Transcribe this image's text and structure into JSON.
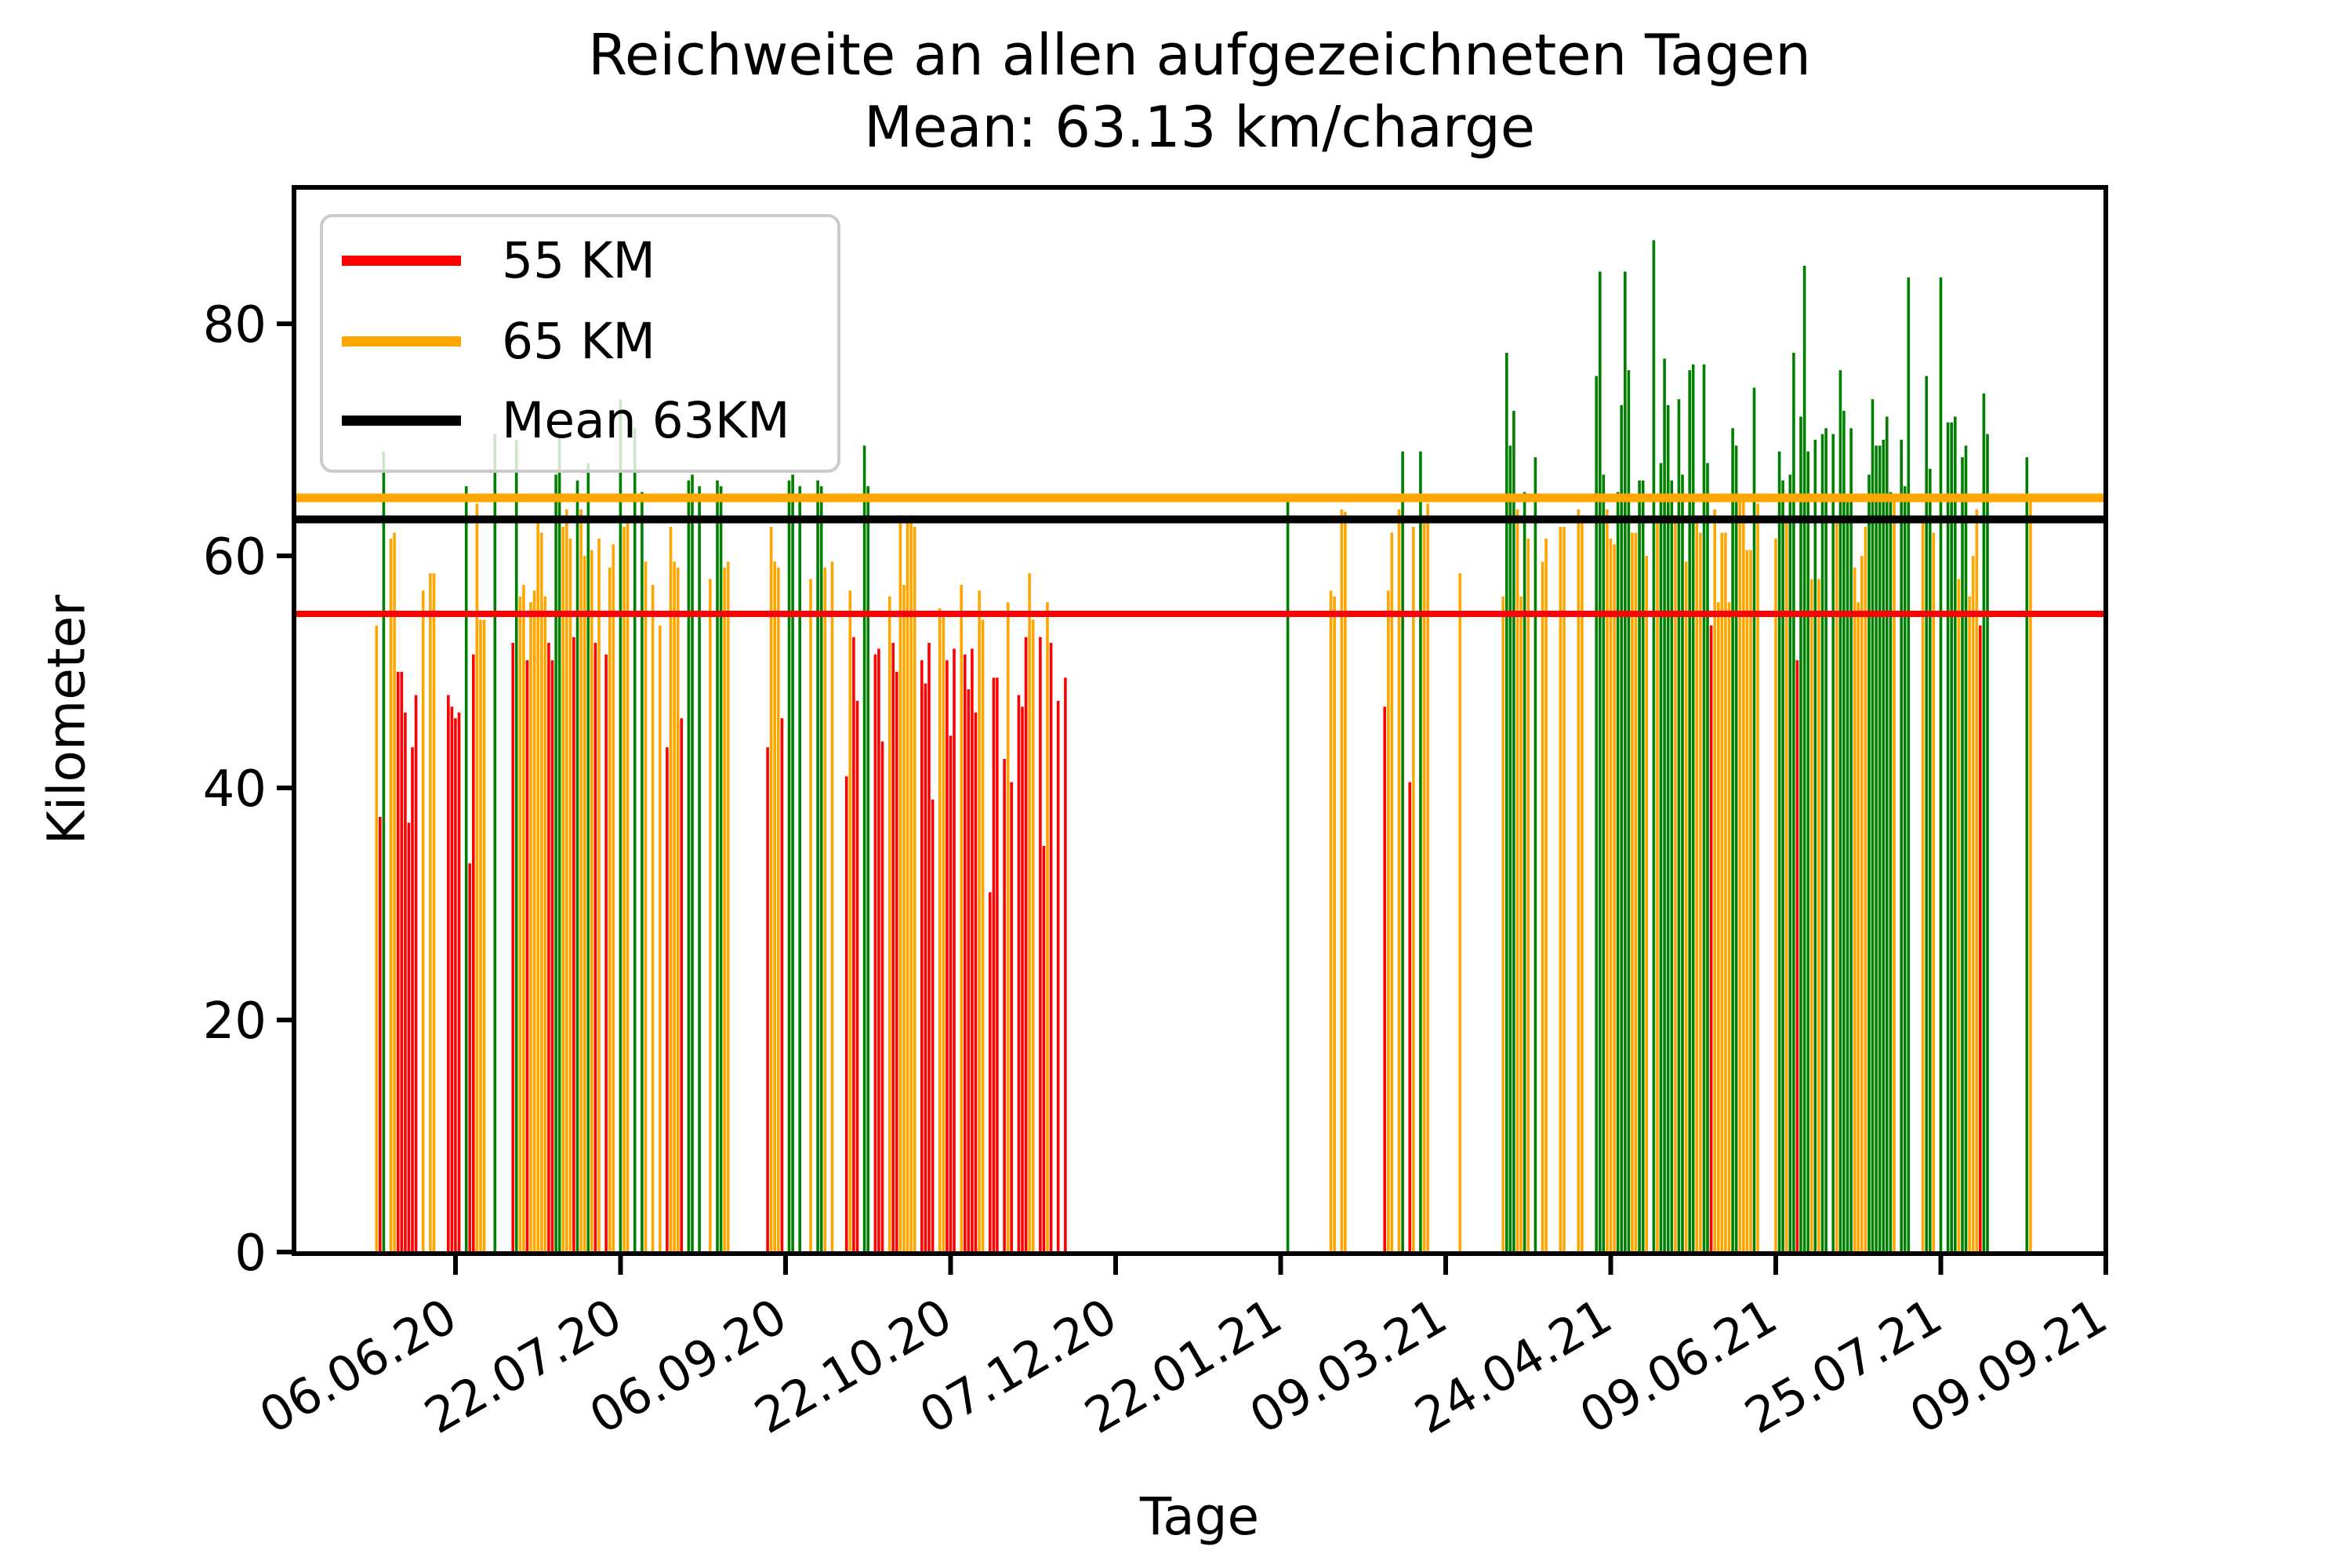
{
  "title": {
    "line1": "Reichweite an allen aufgezeichneten Tagen",
    "line2": "Mean: 63.13 km/charge"
  },
  "axes": {
    "x_label": "Tage",
    "y_label": "Kilometer",
    "y_ticks": [
      0,
      20,
      40,
      60,
      80
    ],
    "x_tick_labels": [
      "06.06.20",
      "22.07.20",
      "06.09.20",
      "22.10.20",
      "07.12.20",
      "22.01.21",
      "09.03.21",
      "24.04.21",
      "09.06.21",
      "25.07.21",
      "09.09.21"
    ],
    "x_tick_dates": [
      "2020-06-06",
      "2020-07-22",
      "2020-09-06",
      "2020-10-22",
      "2020-12-07",
      "2021-01-22",
      "2021-03-09",
      "2021-04-24",
      "2021-06-09",
      "2021-07-25",
      "2021-09-09"
    ]
  },
  "legend": {
    "entries": [
      {
        "label": "55 KM",
        "color": "#ff0000"
      },
      {
        "label": "65 KM",
        "color": "#ffa500"
      },
      {
        "label": "Mean 63KM",
        "color": "#000000"
      }
    ]
  },
  "chart_data": {
    "type": "bar",
    "title": "Reichweite an allen aufgezeichneten Tagen Mean: 63.13 km/charge",
    "xlabel": "Tage",
    "ylabel": "Kilometer",
    "ylim": [
      0,
      91.8
    ],
    "x_start": "2020-04-22",
    "x_end": "2021-09-09",
    "mean": 63.13,
    "reference_lines": [
      {
        "label": "55 KM",
        "value": 55,
        "color": "#ff0000"
      },
      {
        "label": "65 KM",
        "value": 65,
        "color": "#ffa500"
      },
      {
        "label": "Mean 63KM",
        "value": 63.13,
        "color": "#000000"
      }
    ],
    "color_map": {
      "r": "#ff0000",
      "o": "#ffa500",
      "g": "#008000"
    },
    "bars": [
      [
        "2020-05-15",
        54,
        "o"
      ],
      [
        "2020-05-16",
        37.5,
        "r"
      ],
      [
        "2020-05-17",
        69,
        "g"
      ],
      [
        "2020-05-19",
        61.5,
        "o"
      ],
      [
        "2020-05-20",
        62,
        "o"
      ],
      [
        "2020-05-21",
        50,
        "r"
      ],
      [
        "2020-05-22",
        50,
        "r"
      ],
      [
        "2020-05-23",
        46.5,
        "r"
      ],
      [
        "2020-05-24",
        37,
        "r"
      ],
      [
        "2020-05-25",
        43.5,
        "r"
      ],
      [
        "2020-05-26",
        48,
        "r"
      ],
      [
        "2020-05-28",
        57,
        "o"
      ],
      [
        "2020-05-30",
        58.5,
        "o"
      ],
      [
        "2020-05-31",
        58.5,
        "o"
      ],
      [
        "2020-06-04",
        48,
        "r"
      ],
      [
        "2020-06-05",
        47,
        "r"
      ],
      [
        "2020-06-06",
        46,
        "r"
      ],
      [
        "2020-06-07",
        46.5,
        "r"
      ],
      [
        "2020-06-09",
        66,
        "g"
      ],
      [
        "2020-06-10",
        33.5,
        "r"
      ],
      [
        "2020-06-11",
        51.5,
        "r"
      ],
      [
        "2020-06-12",
        64.5,
        "o"
      ],
      [
        "2020-06-13",
        54.5,
        "o"
      ],
      [
        "2020-06-14",
        54.5,
        "o"
      ],
      [
        "2020-06-17",
        70.5,
        "g"
      ],
      [
        "2020-06-22",
        52.5,
        "r"
      ],
      [
        "2020-06-23",
        70,
        "g"
      ],
      [
        "2020-06-24",
        56.5,
        "o"
      ],
      [
        "2020-06-25",
        57.5,
        "o"
      ],
      [
        "2020-06-26",
        51,
        "r"
      ],
      [
        "2020-06-27",
        56,
        "o"
      ],
      [
        "2020-06-28",
        57,
        "o"
      ],
      [
        "2020-06-29",
        63,
        "o"
      ],
      [
        "2020-06-30",
        62,
        "o"
      ],
      [
        "2020-07-01",
        56.5,
        "o"
      ],
      [
        "2020-07-02",
        52.5,
        "r"
      ],
      [
        "2020-07-03",
        51,
        "r"
      ],
      [
        "2020-07-04",
        67,
        "g"
      ],
      [
        "2020-07-05",
        70.5,
        "g"
      ],
      [
        "2020-07-06",
        62.5,
        "o"
      ],
      [
        "2020-07-07",
        64,
        "o"
      ],
      [
        "2020-07-08",
        61.5,
        "o"
      ],
      [
        "2020-07-09",
        53,
        "r"
      ],
      [
        "2020-07-10",
        66.5,
        "g"
      ],
      [
        "2020-07-11",
        64,
        "o"
      ],
      [
        "2020-07-12",
        60,
        "o"
      ],
      [
        "2020-07-13",
        68,
        "g"
      ],
      [
        "2020-07-14",
        60.5,
        "o"
      ],
      [
        "2020-07-15",
        52.5,
        "r"
      ],
      [
        "2020-07-16",
        61.5,
        "o"
      ],
      [
        "2020-07-18",
        51.5,
        "r"
      ],
      [
        "2020-07-19",
        59,
        "o"
      ],
      [
        "2020-07-20",
        61,
        "o"
      ],
      [
        "2020-07-22",
        73.5,
        "g"
      ],
      [
        "2020-07-23",
        62.5,
        "o"
      ],
      [
        "2020-07-24",
        63,
        "o"
      ],
      [
        "2020-07-26",
        71,
        "g"
      ],
      [
        "2020-07-28",
        65.5,
        "g"
      ],
      [
        "2020-07-29",
        59.5,
        "o"
      ],
      [
        "2020-07-31",
        57.5,
        "o"
      ],
      [
        "2020-08-02",
        54,
        "o"
      ],
      [
        "2020-08-04",
        43.5,
        "r"
      ],
      [
        "2020-08-05",
        62.5,
        "o"
      ],
      [
        "2020-08-06",
        59.5,
        "o"
      ],
      [
        "2020-08-07",
        59,
        "o"
      ],
      [
        "2020-08-08",
        46,
        "r"
      ],
      [
        "2020-08-10",
        66.5,
        "g"
      ],
      [
        "2020-08-11",
        67,
        "g"
      ],
      [
        "2020-08-13",
        66,
        "g"
      ],
      [
        "2020-08-16",
        58,
        "o"
      ],
      [
        "2020-08-18",
        66.5,
        "g"
      ],
      [
        "2020-08-19",
        66,
        "g"
      ],
      [
        "2020-08-20",
        59,
        "o"
      ],
      [
        "2020-08-21",
        59.5,
        "o"
      ],
      [
        "2020-09-01",
        43.5,
        "r"
      ],
      [
        "2020-09-02",
        62.5,
        "o"
      ],
      [
        "2020-09-03",
        59.5,
        "o"
      ],
      [
        "2020-09-04",
        59,
        "o"
      ],
      [
        "2020-09-05",
        46,
        "r"
      ],
      [
        "2020-09-07",
        66.5,
        "g"
      ],
      [
        "2020-09-08",
        67,
        "g"
      ],
      [
        "2020-09-10",
        66,
        "g"
      ],
      [
        "2020-09-13",
        58,
        "o"
      ],
      [
        "2020-09-15",
        66.5,
        "g"
      ],
      [
        "2020-09-16",
        66,
        "g"
      ],
      [
        "2020-09-17",
        59,
        "o"
      ],
      [
        "2020-09-19",
        59.5,
        "o"
      ],
      [
        "2020-09-23",
        41,
        "r"
      ],
      [
        "2020-09-24",
        57,
        "o"
      ],
      [
        "2020-09-25",
        53,
        "r"
      ],
      [
        "2020-09-26",
        47.5,
        "r"
      ],
      [
        "2020-09-28",
        69.5,
        "g"
      ],
      [
        "2020-09-29",
        66,
        "g"
      ],
      [
        "2020-10-01",
        51.5,
        "r"
      ],
      [
        "2020-10-02",
        52,
        "r"
      ],
      [
        "2020-10-03",
        44,
        "r"
      ],
      [
        "2020-10-05",
        56.5,
        "o"
      ],
      [
        "2020-10-06",
        52.5,
        "r"
      ],
      [
        "2020-10-07",
        50,
        "r"
      ],
      [
        "2020-10-08",
        63.5,
        "o"
      ],
      [
        "2020-10-09",
        57.5,
        "o"
      ],
      [
        "2020-10-10",
        63,
        "o"
      ],
      [
        "2020-10-11",
        63.5,
        "o"
      ],
      [
        "2020-10-12",
        62.5,
        "o"
      ],
      [
        "2020-10-14",
        51,
        "r"
      ],
      [
        "2020-10-15",
        49,
        "r"
      ],
      [
        "2020-10-16",
        52.5,
        "r"
      ],
      [
        "2020-10-17",
        39,
        "r"
      ],
      [
        "2020-10-19",
        55.5,
        "o"
      ],
      [
        "2020-10-20",
        55,
        "o"
      ],
      [
        "2020-10-21",
        51,
        "r"
      ],
      [
        "2020-10-22",
        44.5,
        "r"
      ],
      [
        "2020-10-23",
        52,
        "r"
      ],
      [
        "2020-10-25",
        57.5,
        "o"
      ],
      [
        "2020-10-26",
        51.5,
        "r"
      ],
      [
        "2020-10-27",
        48.5,
        "r"
      ],
      [
        "2020-10-28",
        52,
        "r"
      ],
      [
        "2020-10-29",
        46.5,
        "r"
      ],
      [
        "2020-10-30",
        57,
        "o"
      ],
      [
        "2020-10-31",
        54.5,
        "o"
      ],
      [
        "2020-11-02",
        31,
        "r"
      ],
      [
        "2020-11-03",
        49.5,
        "r"
      ],
      [
        "2020-11-04",
        49.5,
        "r"
      ],
      [
        "2020-11-06",
        42.5,
        "r"
      ],
      [
        "2020-11-07",
        56,
        "o"
      ],
      [
        "2020-11-08",
        40.5,
        "r"
      ],
      [
        "2020-11-10",
        48,
        "r"
      ],
      [
        "2020-11-11",
        47,
        "r"
      ],
      [
        "2020-11-12",
        53,
        "r"
      ],
      [
        "2020-11-13",
        58.5,
        "o"
      ],
      [
        "2020-11-14",
        54.5,
        "o"
      ],
      [
        "2020-11-16",
        53,
        "r"
      ],
      [
        "2020-11-17",
        35,
        "r"
      ],
      [
        "2020-11-18",
        56,
        "o"
      ],
      [
        "2020-11-19",
        52.5,
        "r"
      ],
      [
        "2020-11-21",
        47.5,
        "r"
      ],
      [
        "2020-11-23",
        49.5,
        "r"
      ],
      [
        "2021-01-24",
        65,
        "g"
      ],
      [
        "2021-02-05",
        57,
        "o"
      ],
      [
        "2021-02-06",
        56.5,
        "o"
      ],
      [
        "2021-02-08",
        64,
        "o"
      ],
      [
        "2021-02-09",
        63.8,
        "o"
      ],
      [
        "2021-02-20",
        47,
        "r"
      ],
      [
        "2021-02-21",
        57,
        "o"
      ],
      [
        "2021-02-22",
        62,
        "o"
      ],
      [
        "2021-02-24",
        64,
        "o"
      ],
      [
        "2021-02-25",
        69,
        "g"
      ],
      [
        "2021-02-27",
        40.5,
        "r"
      ],
      [
        "2021-02-28",
        62.5,
        "o"
      ],
      [
        "2021-03-02",
        69,
        "g"
      ],
      [
        "2021-03-03",
        63,
        "o"
      ],
      [
        "2021-03-04",
        64.5,
        "o"
      ],
      [
        "2021-03-13",
        58.5,
        "o"
      ],
      [
        "2021-03-25",
        56.5,
        "o"
      ],
      [
        "2021-03-26",
        77.5,
        "g"
      ],
      [
        "2021-03-27",
        69.5,
        "g"
      ],
      [
        "2021-03-28",
        72.5,
        "g"
      ],
      [
        "2021-03-29",
        64,
        "o"
      ],
      [
        "2021-03-30",
        56.5,
        "o"
      ],
      [
        "2021-03-31",
        65.5,
        "g"
      ],
      [
        "2021-04-01",
        61.5,
        "o"
      ],
      [
        "2021-04-03",
        68.5,
        "g"
      ],
      [
        "2021-04-05",
        59.5,
        "o"
      ],
      [
        "2021-04-06",
        61.5,
        "o"
      ],
      [
        "2021-04-10",
        62.5,
        "o"
      ],
      [
        "2021-04-11",
        62.5,
        "o"
      ],
      [
        "2021-04-15",
        64,
        "o"
      ],
      [
        "2021-04-16",
        63.5,
        "o"
      ],
      [
        "2021-04-20",
        75.5,
        "g"
      ],
      [
        "2021-04-21",
        84.5,
        "g"
      ],
      [
        "2021-04-22",
        67,
        "g"
      ],
      [
        "2021-04-23",
        64,
        "o"
      ],
      [
        "2021-04-24",
        61.5,
        "o"
      ],
      [
        "2021-04-25",
        61,
        "o"
      ],
      [
        "2021-04-26",
        65.5,
        "g"
      ],
      [
        "2021-04-27",
        73,
        "g"
      ],
      [
        "2021-04-28",
        84.5,
        "g"
      ],
      [
        "2021-04-29",
        76,
        "g"
      ],
      [
        "2021-04-30",
        62,
        "o"
      ],
      [
        "2021-05-01",
        62,
        "o"
      ],
      [
        "2021-05-02",
        66.5,
        "g"
      ],
      [
        "2021-05-03",
        66.5,
        "g"
      ],
      [
        "2021-05-04",
        60,
        "o"
      ],
      [
        "2021-05-06",
        87.2,
        "g"
      ],
      [
        "2021-05-07",
        63.3,
        "o"
      ],
      [
        "2021-05-08",
        68,
        "g"
      ],
      [
        "2021-05-09",
        77,
        "g"
      ],
      [
        "2021-05-10",
        73,
        "g"
      ],
      [
        "2021-05-11",
        66.5,
        "g"
      ],
      [
        "2021-05-12",
        63.5,
        "o"
      ],
      [
        "2021-05-13",
        73.5,
        "g"
      ],
      [
        "2021-05-14",
        67,
        "g"
      ],
      [
        "2021-05-15",
        59.5,
        "o"
      ],
      [
        "2021-05-16",
        76,
        "g"
      ],
      [
        "2021-05-17",
        76.5,
        "g"
      ],
      [
        "2021-05-18",
        63,
        "o"
      ],
      [
        "2021-05-19",
        62,
        "o"
      ],
      [
        "2021-05-20",
        76.5,
        "g"
      ],
      [
        "2021-05-21",
        68,
        "g"
      ],
      [
        "2021-05-22",
        54,
        "r"
      ],
      [
        "2021-05-23",
        64,
        "o"
      ],
      [
        "2021-05-24",
        56,
        "o"
      ],
      [
        "2021-05-25",
        62,
        "o"
      ],
      [
        "2021-05-26",
        62,
        "o"
      ],
      [
        "2021-05-27",
        56,
        "o"
      ],
      [
        "2021-05-28",
        71,
        "g"
      ],
      [
        "2021-05-29",
        69.5,
        "g"
      ],
      [
        "2021-05-30",
        64.8,
        "o"
      ],
      [
        "2021-05-31",
        64.8,
        "o"
      ],
      [
        "2021-06-01",
        60.5,
        "o"
      ],
      [
        "2021-06-02",
        60.5,
        "o"
      ],
      [
        "2021-06-03",
        74.5,
        "g"
      ],
      [
        "2021-06-04",
        64.5,
        "o"
      ],
      [
        "2021-06-09",
        61.5,
        "o"
      ],
      [
        "2021-06-10",
        69,
        "g"
      ],
      [
        "2021-06-11",
        66.5,
        "g"
      ],
      [
        "2021-06-12",
        63,
        "o"
      ],
      [
        "2021-06-13",
        67,
        "g"
      ],
      [
        "2021-06-14",
        77.5,
        "g"
      ],
      [
        "2021-06-15",
        51,
        "r"
      ],
      [
        "2021-06-16",
        72,
        "g"
      ],
      [
        "2021-06-17",
        85,
        "g"
      ],
      [
        "2021-06-18",
        69,
        "g"
      ],
      [
        "2021-06-19",
        58,
        "o"
      ],
      [
        "2021-06-20",
        70,
        "g"
      ],
      [
        "2021-06-21",
        58,
        "o"
      ],
      [
        "2021-06-22",
        70.5,
        "g"
      ],
      [
        "2021-06-23",
        71,
        "g"
      ],
      [
        "2021-06-25",
        70.5,
        "g"
      ],
      [
        "2021-06-26",
        63,
        "o"
      ],
      [
        "2021-06-27",
        76,
        "g"
      ],
      [
        "2021-06-28",
        72.5,
        "g"
      ],
      [
        "2021-06-29",
        65,
        "g"
      ],
      [
        "2021-06-30",
        71,
        "g"
      ],
      [
        "2021-07-01",
        59,
        "o"
      ],
      [
        "2021-07-02",
        56,
        "o"
      ],
      [
        "2021-07-03",
        60,
        "o"
      ],
      [
        "2021-07-04",
        62.5,
        "o"
      ],
      [
        "2021-07-05",
        67,
        "g"
      ],
      [
        "2021-07-06",
        73.5,
        "g"
      ],
      [
        "2021-07-07",
        69.5,
        "g"
      ],
      [
        "2021-07-08",
        69.5,
        "g"
      ],
      [
        "2021-07-09",
        70,
        "g"
      ],
      [
        "2021-07-10",
        72,
        "g"
      ],
      [
        "2021-07-11",
        65.5,
        "g"
      ],
      [
        "2021-07-12",
        64.8,
        "o"
      ],
      [
        "2021-07-14",
        70,
        "g"
      ],
      [
        "2021-07-15",
        66,
        "g"
      ],
      [
        "2021-07-16",
        84,
        "g"
      ],
      [
        "2021-07-20",
        63,
        "o"
      ],
      [
        "2021-07-21",
        75.5,
        "g"
      ],
      [
        "2021-07-22",
        67.5,
        "g"
      ],
      [
        "2021-07-23",
        62,
        "o"
      ],
      [
        "2021-07-25",
        84,
        "g"
      ],
      [
        "2021-07-27",
        71.5,
        "g"
      ],
      [
        "2021-07-28",
        71.5,
        "g"
      ],
      [
        "2021-07-29",
        72,
        "g"
      ],
      [
        "2021-07-30",
        58,
        "o"
      ],
      [
        "2021-07-31",
        68.5,
        "g"
      ],
      [
        "2021-08-01",
        69.5,
        "g"
      ],
      [
        "2021-08-02",
        56.5,
        "o"
      ],
      [
        "2021-08-03",
        60,
        "o"
      ],
      [
        "2021-08-04",
        64,
        "o"
      ],
      [
        "2021-08-05",
        54,
        "r"
      ],
      [
        "2021-08-06",
        74,
        "g"
      ],
      [
        "2021-08-07",
        70.5,
        "g"
      ],
      [
        "2021-08-18",
        68.5,
        "g"
      ],
      [
        "2021-08-19",
        64.8,
        "o"
      ]
    ]
  }
}
